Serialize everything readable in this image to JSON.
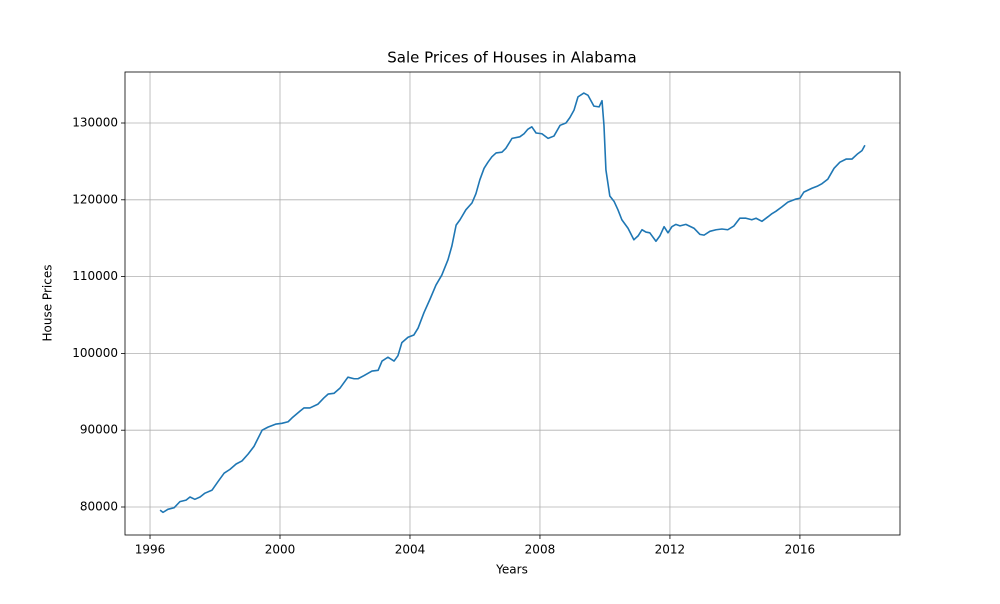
{
  "chart_data": {
    "type": "line",
    "title": "Sale Prices of Houses in Alabama",
    "x_label": "Years",
    "y_label": "House Prices",
    "color": "#1f77b4",
    "grid": true,
    "xlim": [
      1995.23,
      2019.08
    ],
    "ylim": [
      76354,
      136641
    ],
    "xticks": [
      1996,
      2000,
      2004,
      2008,
      2012,
      2016
    ],
    "yticks": [
      80000,
      90000,
      100000,
      110000,
      120000,
      130000
    ],
    "x": [
      1996.31,
      1996.4,
      1996.55,
      1996.74,
      1996.92,
      1997.11,
      1997.23,
      1997.38,
      1997.54,
      1997.69,
      1997.91,
      1998.09,
      1998.28,
      1998.46,
      1998.65,
      1998.83,
      1999.02,
      1999.2,
      1999.45,
      1999.63,
      1999.88,
      2000.06,
      2000.25,
      2000.37,
      2000.62,
      2000.74,
      2000.92,
      2001.17,
      2001.35,
      2001.48,
      2001.66,
      2001.85,
      2002.09,
      2002.28,
      2002.4,
      2002.58,
      2002.83,
      2003.02,
      2003.14,
      2003.32,
      2003.51,
      2003.63,
      2003.75,
      2003.94,
      2004.12,
      2004.25,
      2004.43,
      2004.62,
      2004.8,
      2004.98,
      2005.17,
      2005.29,
      2005.42,
      2005.54,
      2005.72,
      2005.91,
      2006.03,
      2006.15,
      2006.28,
      2006.4,
      2006.52,
      2006.65,
      2006.83,
      2006.95,
      2007.14,
      2007.38,
      2007.51,
      2007.63,
      2007.75,
      2007.88,
      2008.06,
      2008.25,
      2008.43,
      2008.62,
      2008.8,
      2008.92,
      2009.05,
      2009.17,
      2009.35,
      2009.48,
      2009.66,
      2009.82,
      2009.91,
      2009.97,
      2010.03,
      2010.15,
      2010.28,
      2010.4,
      2010.52,
      2010.71,
      2010.89,
      2011.02,
      2011.14,
      2011.26,
      2011.38,
      2011.57,
      2011.69,
      2011.82,
      2011.94,
      2012.06,
      2012.18,
      2012.31,
      2012.49,
      2012.74,
      2012.92,
      2013.05,
      2013.23,
      2013.42,
      2013.6,
      2013.78,
      2013.97,
      2014.15,
      2014.34,
      2014.52,
      2014.65,
      2014.83,
      2015.02,
      2015.14,
      2015.26,
      2015.45,
      2015.63,
      2015.88,
      2016.0,
      2016.12,
      2016.37,
      2016.55,
      2016.68,
      2016.86,
      2017.05,
      2017.23,
      2017.42,
      2017.6,
      2017.78,
      2017.91,
      2018.0
    ],
    "values": [
      79600,
      79300,
      79700,
      79900,
      80700,
      80900,
      81300,
      81000,
      81300,
      81800,
      82200,
      83300,
      84400,
      84900,
      85600,
      86000,
      86900,
      87900,
      90000,
      90400,
      90800,
      90900,
      91100,
      91600,
      92500,
      92900,
      92900,
      93400,
      94200,
      94700,
      94800,
      95500,
      96900,
      96700,
      96700,
      97100,
      97700,
      97800,
      99000,
      99500,
      99000,
      99700,
      101400,
      102100,
      102400,
      103300,
      105300,
      107100,
      108900,
      110200,
      112200,
      114000,
      116700,
      117400,
      118700,
      119600,
      120800,
      122600,
      124100,
      124900,
      125600,
      126100,
      126200,
      126700,
      128000,
      128200,
      128600,
      129200,
      129500,
      128700,
      128600,
      128000,
      128300,
      129700,
      130000,
      130700,
      131700,
      133400,
      133900,
      133600,
      132200,
      132100,
      132900,
      129700,
      123900,
      120500,
      119800,
      118700,
      117400,
      116300,
      114800,
      115300,
      116100,
      115800,
      115700,
      114600,
      115300,
      116500,
      115700,
      116500,
      116800,
      116600,
      116800,
      116300,
      115500,
      115400,
      115900,
      116100,
      116200,
      116100,
      116600,
      117600,
      117600,
      117400,
      117600,
      117200,
      117800,
      118200,
      118500,
      119100,
      119700,
      120100,
      120200,
      121000,
      121500,
      121800,
      122100,
      122700,
      124100,
      124900,
      125300,
      125300,
      126000,
      126400,
      127100
    ]
  }
}
